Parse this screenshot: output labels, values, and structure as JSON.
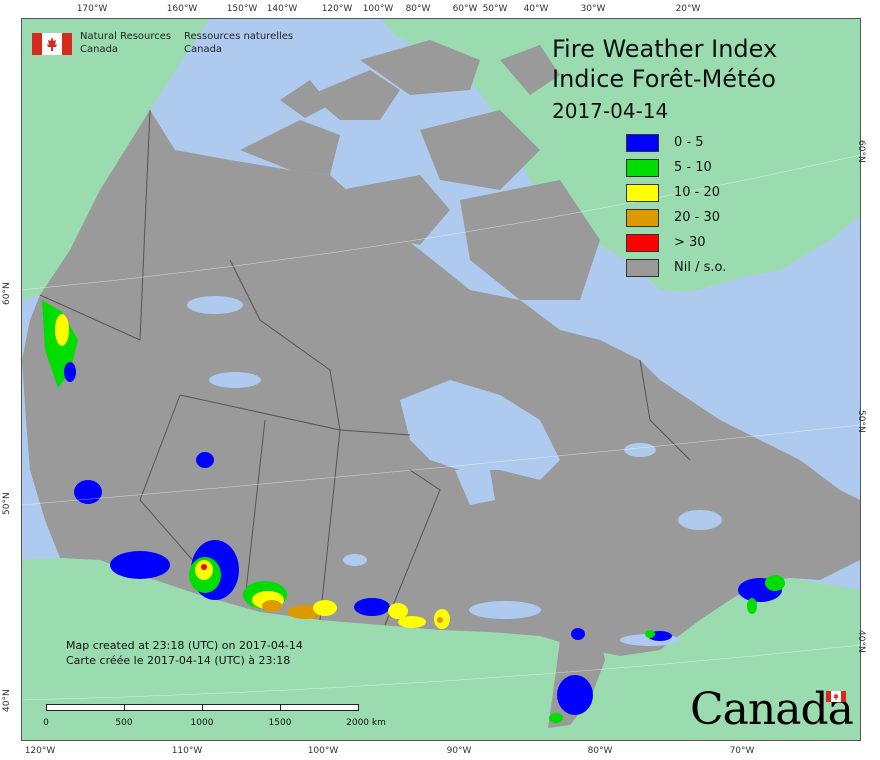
{
  "map": {
    "title_en": "Fire Weather Index",
    "title_fr": "Indice Forêt-Météo",
    "date": "2017-04-14",
    "agency": {
      "en_line1": "Natural Resources",
      "en_line2": "Canada",
      "fr_line1": "Ressources naturelles",
      "fr_line2": "Canada"
    },
    "credit": {
      "en": "Map created at 23:18 (UTC) on 2017-04-14",
      "fr": "Carte créée le 2017-04-14 (UTC) à 23:18"
    },
    "wordmark": "Canada",
    "colors": {
      "ocean": "#aecbef",
      "land_outside": "#9adcb0",
      "canada": "#9a9a9a",
      "water_inland": "#aecbef",
      "border": "#555555"
    }
  },
  "legend": [
    {
      "label": "0 - 5",
      "color": "#0000ff"
    },
    {
      "label": "5 - 10",
      "color": "#00dd00"
    },
    {
      "label": "10 - 20",
      "color": "#ffff00"
    },
    {
      "label": "20 - 30",
      "color": "#dd9900"
    },
    {
      "label": "> 30",
      "color": "#ff0000"
    },
    {
      "label": "Nil / s.o.",
      "color": "#9a9a9a"
    }
  ],
  "graticule": {
    "top": [
      "170°W",
      "160°W",
      "150°W",
      "140°W",
      "120°W",
      "100°W",
      "80°W",
      "60°W",
      "50°W",
      "40°W",
      "30°W",
      "20°W"
    ],
    "bottom": [
      "120°W",
      "110°W",
      "100°W",
      "90°W",
      "80°W",
      "70°W"
    ],
    "left": [
      "60°N",
      "50°N",
      "40°N"
    ],
    "right": [
      "60°N",
      "50°N",
      "40°N"
    ]
  },
  "scale_bar": {
    "labels": [
      "0",
      "500",
      "1000",
      "1500",
      "2000 km"
    ]
  }
}
